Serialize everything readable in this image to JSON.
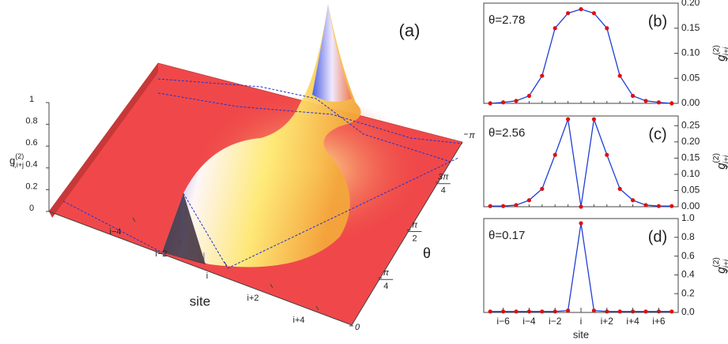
{
  "chart_data": [
    {
      "type": "surface3d",
      "panel": "(a)",
      "zlabel": {
        "base": "g",
        "sup": "(2)",
        "sub": "i,i+j"
      },
      "zlim": [
        0,
        1
      ],
      "zticks": [
        0,
        0.2,
        0.4,
        0.6,
        0.8,
        1
      ],
      "xlabel": "site",
      "xticks": [
        {
          "value": -4,
          "label": "i−4"
        },
        {
          "value": -2,
          "label": "i−2"
        },
        {
          "value": 0,
          "label": "i"
        },
        {
          "value": 2,
          "label": "i+2"
        },
        {
          "value": 4,
          "label": "i+4"
        }
      ],
      "ylabel": "θ",
      "ylim": [
        0,
        3.1416
      ],
      "yticks": [
        {
          "value": 0,
          "label": "0"
        },
        {
          "value": 0.7854,
          "label": "π/4"
        },
        {
          "value": 1.5708,
          "label": "π/2"
        },
        {
          "value": 2.3562,
          "label": "3π/4"
        },
        {
          "value": 3.1416,
          "label": "π"
        }
      ]
    },
    {
      "type": "line",
      "panel": "(b)",
      "annotation": "θ=2.78",
      "color": "#1f3fd6",
      "marker_color": "#e01010",
      "ylabel": {
        "base": "g",
        "sup": "(2)",
        "sub": "i,i+j"
      },
      "x": [
        -7,
        -6,
        -5,
        -4,
        -3,
        -2,
        -1,
        0,
        1,
        2,
        3,
        4,
        5,
        6,
        7
      ],
      "values": [
        0.0,
        0.002,
        0.005,
        0.015,
        0.055,
        0.15,
        0.18,
        0.188,
        0.18,
        0.15,
        0.055,
        0.015,
        0.005,
        0.002,
        0.0
      ],
      "xlim": [
        -7.5,
        7.5
      ],
      "ylim": [
        0,
        0.2
      ],
      "yticks": [
        {
          "value": 0,
          "label": "0.00"
        },
        {
          "value": 0.05,
          "label": "0.05"
        },
        {
          "value": 0.1,
          "label": "0.10"
        },
        {
          "value": 0.15,
          "label": "0.15"
        },
        {
          "value": 0.2,
          "label": "0.20"
        }
      ]
    },
    {
      "type": "line",
      "panel": "(c)",
      "annotation": "θ=2.56",
      "color": "#1f3fd6",
      "marker_color": "#e01010",
      "ylabel": {
        "base": "g",
        "sup": "(2)",
        "sub": "i,i+j"
      },
      "x": [
        -7,
        -6,
        -5,
        -4,
        -3,
        -2,
        -1,
        0,
        1,
        2,
        3,
        4,
        5,
        6,
        7
      ],
      "values": [
        0.002,
        0.002,
        0.005,
        0.02,
        0.055,
        0.16,
        0.27,
        0.0,
        0.27,
        0.16,
        0.055,
        0.02,
        0.005,
        0.002,
        0.002
      ],
      "xlim": [
        -7.5,
        7.5
      ],
      "ylim": [
        0,
        0.28
      ],
      "yticks": [
        {
          "value": 0,
          "label": "0.00"
        },
        {
          "value": 0.05,
          "label": "0.05"
        },
        {
          "value": 0.1,
          "label": "0.10"
        },
        {
          "value": 0.15,
          "label": "0.15"
        },
        {
          "value": 0.2,
          "label": "0.20"
        },
        {
          "value": 0.25,
          "label": "0.25"
        }
      ]
    },
    {
      "type": "line",
      "panel": "(d)",
      "annotation": "θ=0.17",
      "color": "#1f3fd6",
      "marker_color": "#e01010",
      "ylabel": {
        "base": "g",
        "sup": "(2)",
        "sub": "i,i+j"
      },
      "x": [
        -7,
        -6,
        -5,
        -4,
        -3,
        -2,
        -1,
        0,
        1,
        2,
        3,
        4,
        5,
        6,
        7
      ],
      "values": [
        0.01,
        0.01,
        0.01,
        0.01,
        0.01,
        0.01,
        0.02,
        0.95,
        0.02,
        0.01,
        0.01,
        0.01,
        0.01,
        0.01,
        0.01
      ],
      "xlim": [
        -7.5,
        7.5
      ],
      "ylim": [
        0,
        1.0
      ],
      "yticks": [
        {
          "value": 0,
          "label": "0.0"
        },
        {
          "value": 0.2,
          "label": "0.2"
        },
        {
          "value": 0.4,
          "label": "0.4"
        },
        {
          "value": 0.6,
          "label": "0.6"
        },
        {
          "value": 0.8,
          "label": "0.8"
        },
        {
          "value": 1.0,
          "label": "1.0"
        }
      ],
      "xlabel": "site",
      "xticks": [
        {
          "value": -6,
          "label": "i−6"
        },
        {
          "value": -4,
          "label": "i−4"
        },
        {
          "value": -2,
          "label": "i−2"
        },
        {
          "value": 0,
          "label": "i"
        },
        {
          "value": 2,
          "label": "i+2"
        },
        {
          "value": 4,
          "label": "i+4"
        },
        {
          "value": 6,
          "label": "i+6"
        }
      ]
    }
  ]
}
